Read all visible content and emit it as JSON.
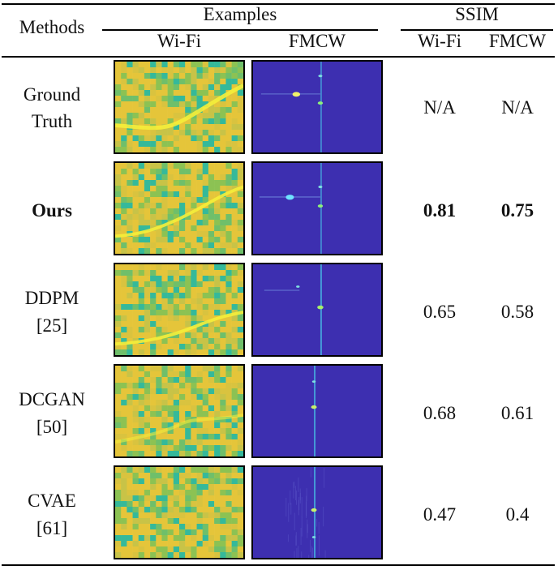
{
  "header": {
    "methods": "Methods",
    "examples": "Examples",
    "ssim": "SSIM",
    "wifi": "Wi-Fi",
    "fmcw": "FMCW",
    "ssim_wifi": "Wi-Fi",
    "ssim_fmcw": "FMCW"
  },
  "rows": [
    {
      "method_line1": "Ground",
      "method_line2": "Truth",
      "ssim_wifi": "N/A",
      "ssim_fmcw": "N/A"
    },
    {
      "method": "Ours",
      "ssim_wifi": "0.81",
      "ssim_fmcw": "0.75"
    },
    {
      "method_line1": "DDPM",
      "method_line2": "[25]",
      "ssim_wifi": "0.65",
      "ssim_fmcw": "0.58"
    },
    {
      "method_line1": "DCGAN",
      "method_line2": "[50]",
      "ssim_wifi": "0.68",
      "ssim_fmcw": "0.61"
    },
    {
      "method_line1": "CVAE",
      "method_line2": "[61]",
      "ssim_wifi": "0.47",
      "ssim_fmcw": "0.4"
    }
  ],
  "colors": {
    "wifi_base": "#e5c53a",
    "wifi_green": "#8cc253",
    "wifi_teal": "#35b99a",
    "wifi_trace": "#f5ee3a",
    "fmcw_bg": "#3d2fb0",
    "fmcw_line": "#49c9ea"
  }
}
